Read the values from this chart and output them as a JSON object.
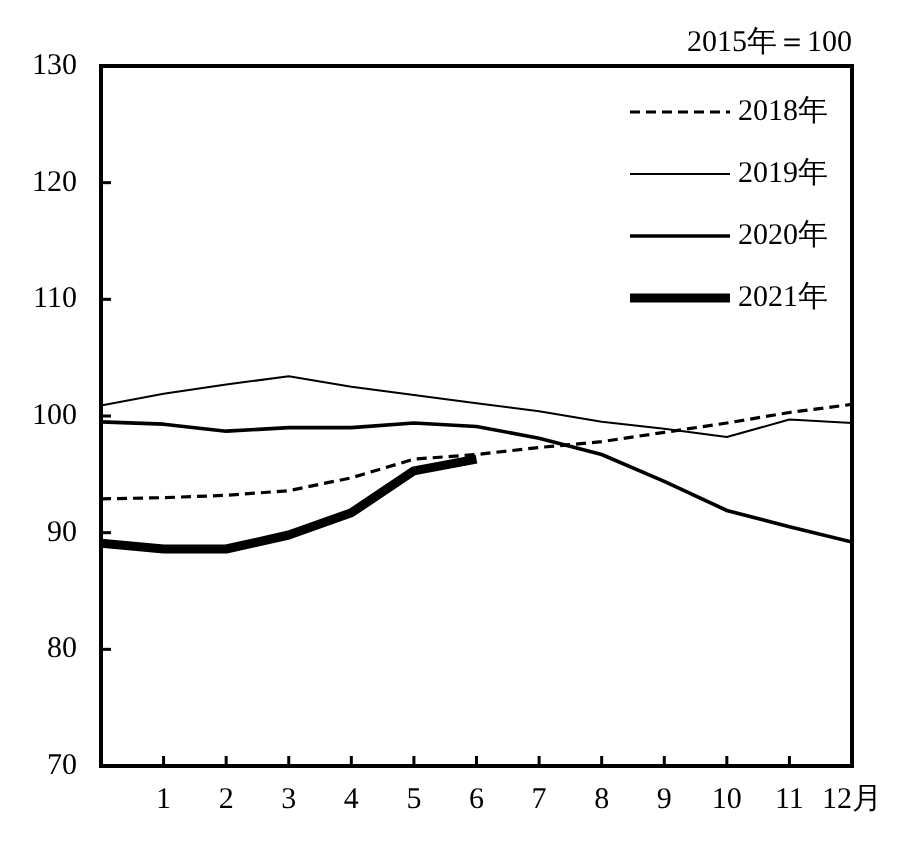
{
  "chart_data": {
    "type": "line",
    "annotations": [
      "2015年＝100"
    ],
    "x": [
      0,
      1,
      2,
      3,
      4,
      5,
      6,
      7,
      8,
      9,
      10,
      11,
      12
    ],
    "series": [
      {
        "name": "2018年",
        "color": "#000000",
        "line_style": "dashed",
        "values": [
          92.9,
          93.0,
          93.2,
          93.6,
          94.7,
          96.3,
          96.7,
          97.3,
          97.8,
          98.6,
          99.4,
          100.3,
          101.0
        ]
      },
      {
        "name": "2019年",
        "color": "#000000",
        "values": [
          100.9,
          101.9,
          102.7,
          103.4,
          102.5,
          101.8,
          101.1,
          100.4,
          99.5,
          98.9,
          98.2,
          99.7,
          99.4
        ]
      },
      {
        "name": "2020年",
        "color": "#000000",
        "values": [
          99.5,
          99.3,
          98.7,
          99.0,
          99.0,
          99.4,
          99.1,
          98.1,
          96.7,
          94.4,
          91.9,
          90.5,
          89.2
        ]
      },
      {
        "name": "2021年",
        "color": "#000000",
        "values": [
          89.1,
          88.6,
          88.6,
          89.8,
          91.7,
          95.3,
          96.3,
          null,
          null,
          null,
          null,
          null,
          null
        ]
      }
    ],
    "xlim": [
      0,
      12
    ],
    "xticks": [
      1,
      2,
      3,
      4,
      5,
      6,
      7,
      8,
      9,
      10,
      11,
      {
        "value": 12,
        "label": "12月"
      }
    ],
    "ylim": [
      70,
      130
    ],
    "yticks": [
      70,
      80,
      90,
      100,
      110,
      120,
      130
    ],
    "grid": false,
    "legend": "top right",
    "marker": "none",
    "line_style": "solid"
  }
}
